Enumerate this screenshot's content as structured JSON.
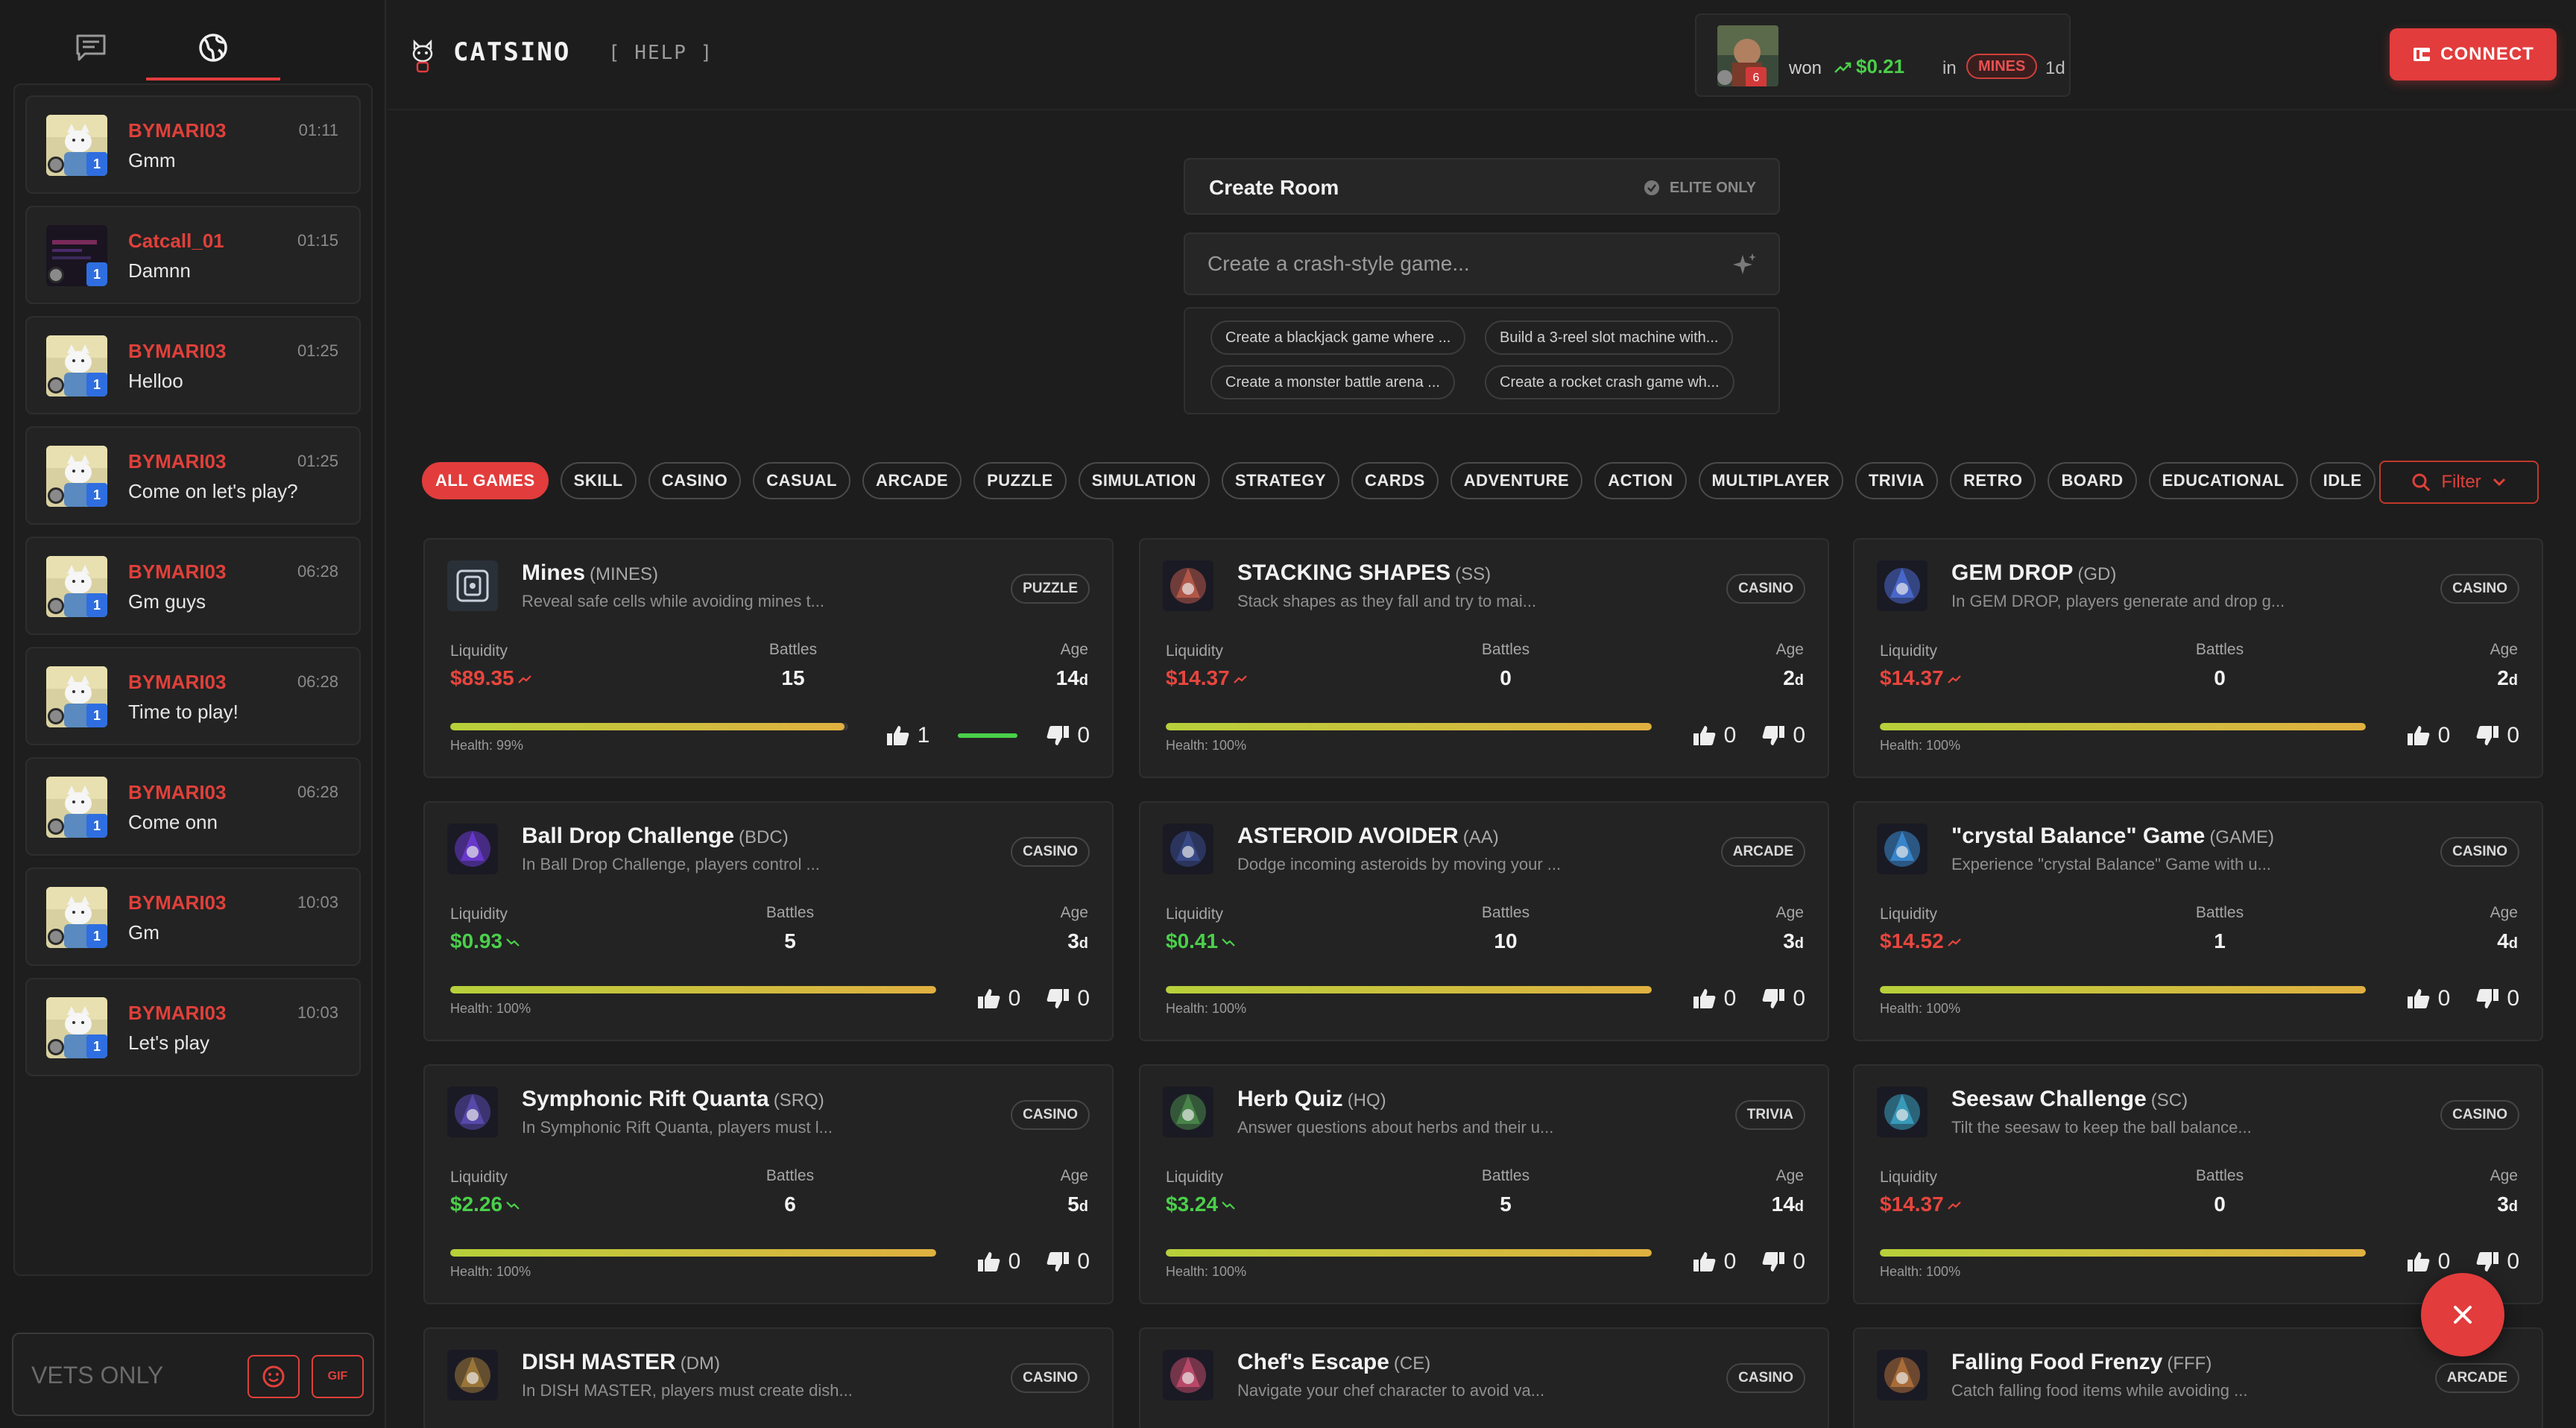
{
  "sidebar": {
    "tabs": [
      {
        "name": "chat-icon"
      },
      {
        "name": "globe-icon"
      }
    ],
    "messages": [
      {
        "user": "BYMARI03",
        "time": "01:11",
        "text": "Gmm",
        "level": "1"
      },
      {
        "user": "Catcall_01",
        "time": "01:15",
        "text": "Damnn",
        "level": "1"
      },
      {
        "user": "BYMARI03",
        "time": "01:25",
        "text": "Helloo",
        "level": "1"
      },
      {
        "user": "BYMARI03",
        "time": "01:25",
        "text": "Come on let's play?",
        "level": "1"
      },
      {
        "user": "BYMARI03",
        "time": "06:28",
        "text": "Gm guys",
        "level": "1"
      },
      {
        "user": "BYMARI03",
        "time": "06:28",
        "text": "Time to play!",
        "level": "1"
      },
      {
        "user": "BYMARI03",
        "time": "06:28",
        "text": "Come onn",
        "level": "1"
      },
      {
        "user": "BYMARI03",
        "time": "10:03",
        "text": "Gm",
        "level": "1"
      },
      {
        "user": "BYMARI03",
        "time": "10:03",
        "text": "Let's play",
        "level": "1"
      }
    ],
    "input_placeholder": "VETS ONLY",
    "gif_label": "GIF"
  },
  "header": {
    "brand": "CATSINO",
    "help": "[ HELP ]",
    "ticker": {
      "won": "won",
      "amount": "$0.21",
      "in": "in",
      "game": "MINES",
      "age": "1d",
      "badge": "6"
    },
    "connect": "CONNECT"
  },
  "create": {
    "title": "Create Room",
    "elite": "ELITE ONLY",
    "placeholder": "Create a crash-style game...",
    "suggestions": [
      "Create a blackjack game where ...",
      "Build a 3-reel slot machine with...",
      "Create a monster battle arena ...",
      "Create a rocket crash game wh..."
    ]
  },
  "categories": [
    "ALL GAMES",
    "SKILL",
    "CASINO",
    "CASUAL",
    "ARCADE",
    "PUZZLE",
    "SIMULATION",
    "STRATEGY",
    "CARDS",
    "ADVENTURE",
    "ACTION",
    "MULTIPLAYER",
    "TRIVIA",
    "RETRO",
    "BOARD",
    "EDUCATIONAL",
    "IDLE"
  ],
  "filter": "Filter",
  "labels": {
    "liquidity": "Liquidity",
    "battles": "Battles",
    "age": "Age"
  },
  "games": [
    {
      "name": "Mines",
      "code": "(MINES)",
      "desc": "Reveal safe cells while avoiding mines t...",
      "tag": "PUZZLE",
      "liquidity": "$89.35",
      "trend": "down",
      "battles": "15",
      "age": "14",
      "age_unit": "d",
      "health": "Health: 99%",
      "health_pct": 99,
      "up": "1",
      "down": "0",
      "accent": "#5a6b8a"
    },
    {
      "name": "STACKING SHAPES",
      "code": "(SS)",
      "desc": "Stack shapes as they fall and try to mai...",
      "tag": "CASINO",
      "liquidity": "$14.37",
      "trend": "down",
      "battles": "0",
      "age": "2",
      "age_unit": "d",
      "health": "Health: 100%",
      "health_pct": 100,
      "up": "0",
      "down": "0",
      "accent": "#b85a4a"
    },
    {
      "name": "GEM DROP",
      "code": "(GD)",
      "desc": "In GEM DROP, players generate and drop g...",
      "tag": "CASINO",
      "liquidity": "$14.37",
      "trend": "down",
      "battles": "0",
      "age": "2",
      "age_unit": "d",
      "health": "Health: 100%",
      "health_pct": 100,
      "up": "0",
      "down": "0",
      "accent": "#4a6ad0"
    },
    {
      "name": "Ball Drop Challenge",
      "code": "(BDC)",
      "desc": "In Ball Drop Challenge, players control ...",
      "tag": "CASINO",
      "liquidity": "$0.93",
      "trend": "up",
      "battles": "5",
      "age": "3",
      "age_unit": "d",
      "health": "Health: 100%",
      "health_pct": 100,
      "up": "0",
      "down": "0",
      "accent": "#6a3ad0"
    },
    {
      "name": "ASTEROID AVOIDER",
      "code": "(AA)",
      "desc": "Dodge incoming asteroids by moving your ...",
      "tag": "ARCADE",
      "liquidity": "$0.41",
      "trend": "up",
      "battles": "10",
      "age": "3",
      "age_unit": "d",
      "health": "Health: 100%",
      "health_pct": 100,
      "up": "0",
      "down": "0",
      "accent": "#3a4a8a"
    },
    {
      "name": "\"crystal Balance\" Game",
      "code": "(GAME)",
      "desc": "Experience \"crystal Balance\" Game with u...",
      "tag": "CASINO",
      "liquidity": "$14.52",
      "trend": "down",
      "battles": "1",
      "age": "4",
      "age_unit": "d",
      "health": "Health: 100%",
      "health_pct": 100,
      "up": "0",
      "down": "0",
      "accent": "#3a8ad0"
    },
    {
      "name": "Symphonic Rift Quanta",
      "code": "(SRQ)",
      "desc": "In Symphonic Rift Quanta, players must l...",
      "tag": "CASINO",
      "liquidity": "$2.26",
      "trend": "up",
      "battles": "6",
      "age": "5",
      "age_unit": "d",
      "health": "Health: 100%",
      "health_pct": 100,
      "up": "0",
      "down": "0",
      "accent": "#5a4ab0"
    },
    {
      "name": "Herb Quiz",
      "code": "(HQ)",
      "desc": "Answer questions about herbs and their u...",
      "tag": "TRIVIA",
      "liquidity": "$3.24",
      "trend": "up",
      "battles": "5",
      "age": "14",
      "age_unit": "d",
      "health": "Health: 100%",
      "health_pct": 100,
      "up": "0",
      "down": "0",
      "accent": "#4a8a4a"
    },
    {
      "name": "Seesaw Challenge",
      "code": "(SC)",
      "desc": "Tilt the seesaw to keep the ball balance...",
      "tag": "CASINO",
      "liquidity": "$14.37",
      "trend": "down",
      "battles": "0",
      "age": "3",
      "age_unit": "d",
      "health": "Health: 100%",
      "health_pct": 100,
      "up": "0",
      "down": "0",
      "accent": "#3aa0c0"
    },
    {
      "name": "DISH MASTER",
      "code": "(DM)",
      "desc": "In DISH MASTER, players must create dish...",
      "tag": "CASINO",
      "accent": "#a07a3a"
    },
    {
      "name": "Chef's Escape",
      "code": "(CE)",
      "desc": "Navigate your chef character to avoid va...",
      "tag": "CASINO",
      "accent": "#c04a6a"
    },
    {
      "name": "Falling Food Frenzy",
      "code": "(FFF)",
      "desc": "Catch falling food items while avoiding ...",
      "tag": "ARCADE",
      "accent": "#b0703a"
    }
  ]
}
